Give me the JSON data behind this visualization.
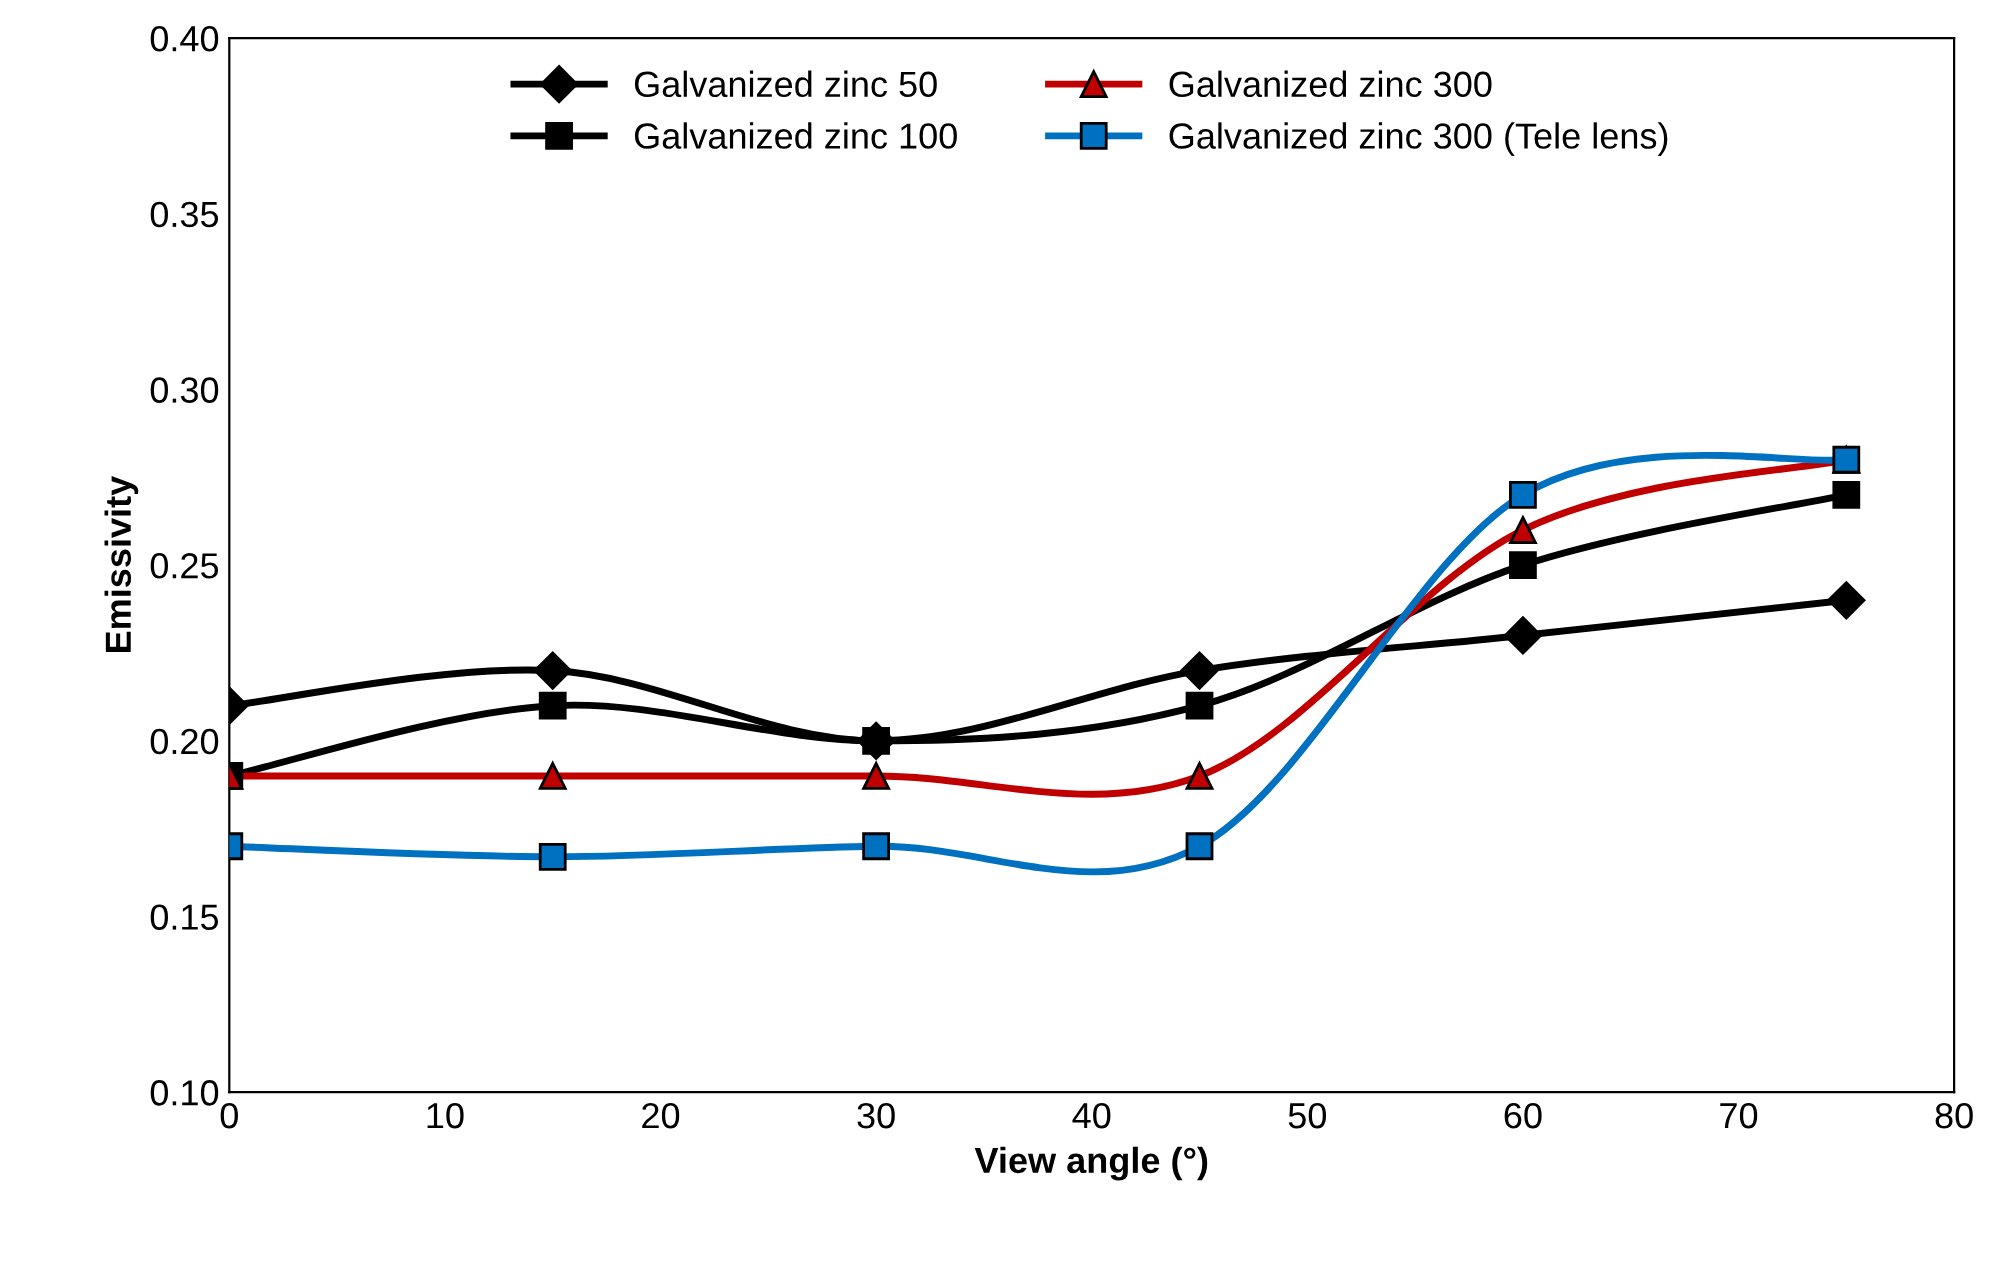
{
  "chart_data": {
    "type": "line",
    "xlabel": "View angle (°)",
    "ylabel": "Emissivity",
    "x": [
      0,
      15,
      30,
      45,
      60,
      75
    ],
    "series": [
      {
        "name": "Galvanized zinc 50",
        "color": "#000000",
        "marker": "diamond",
        "values": [
          0.21,
          0.22,
          0.2,
          0.22,
          0.23,
          0.24
        ]
      },
      {
        "name": "Galvanized zinc 100",
        "color": "#000000",
        "marker": "square",
        "values": [
          0.19,
          0.21,
          0.2,
          0.21,
          0.25,
          0.27
        ]
      },
      {
        "name": "Galvanized zinc 300",
        "color": "#c00000",
        "marker": "triangle",
        "values": [
          0.19,
          0.19,
          0.19,
          0.19,
          0.26,
          0.28
        ]
      },
      {
        "name": "Galvanized zinc 300 (Tele lens)",
        "color": "#0070c0",
        "marker": "square",
        "values": [
          0.17,
          0.167,
          0.17,
          0.17,
          0.27,
          0.28
        ]
      }
    ],
    "xlim": [
      0,
      80
    ],
    "xticks": [
      0,
      10,
      20,
      30,
      40,
      50,
      60,
      70,
      80
    ],
    "ylim": [
      0.1,
      0.4
    ],
    "yticks": [
      {
        "value": 0.1,
        "label": "0.10"
      },
      {
        "value": 0.15,
        "label": "0.15"
      },
      {
        "value": 0.2,
        "label": "0.20"
      },
      {
        "value": 0.25,
        "label": "0.25"
      },
      {
        "value": 0.3,
        "label": "0.30"
      },
      {
        "value": 0.35,
        "label": "0.35"
      },
      {
        "value": 0.4,
        "label": "0.40"
      }
    ],
    "grid": false,
    "legend": "top"
  }
}
